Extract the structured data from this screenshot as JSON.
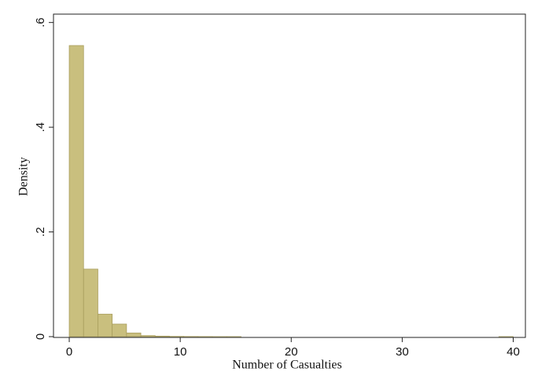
{
  "chart_data": {
    "type": "histogram",
    "xlabel": "Number of Casualties",
    "ylabel": "Density",
    "bins": [
      0,
      1.29,
      2.58,
      3.87,
      5.16,
      6.45,
      7.74,
      9.03,
      10.32,
      11.61,
      12.9,
      14.19,
      15.48,
      16.77,
      18.06,
      19.35,
      20.65,
      21.94,
      23.23,
      24.52,
      25.81,
      27.1,
      28.39,
      29.68,
      30.97,
      32.26,
      33.55,
      34.84,
      36.13,
      37.42,
      38.71,
      40
    ],
    "values": [
      0.556,
      0.129,
      0.043,
      0.024,
      0.007,
      0.002,
      0.001,
      0.0005,
      0.0003,
      0.0002,
      0.0001,
      0.0001,
      0,
      0,
      0,
      0,
      0,
      0,
      0,
      0,
      0,
      0,
      0,
      0,
      0,
      0,
      0,
      0,
      0,
      0,
      0.0001
    ],
    "color": "#c9bf7e",
    "edgecolor": "#a99e5e",
    "xlim": [
      -1.42,
      41.1
    ],
    "ylim": [
      0,
      0.616
    ],
    "xticks": [
      0,
      10,
      20,
      30,
      40
    ],
    "yticks": [
      0,
      {
        "value": 0.2,
        "label": ".2"
      },
      {
        "value": 0.4,
        "label": ".4"
      },
      {
        "value": 0.6,
        "label": ".6"
      }
    ],
    "grid": false
  }
}
